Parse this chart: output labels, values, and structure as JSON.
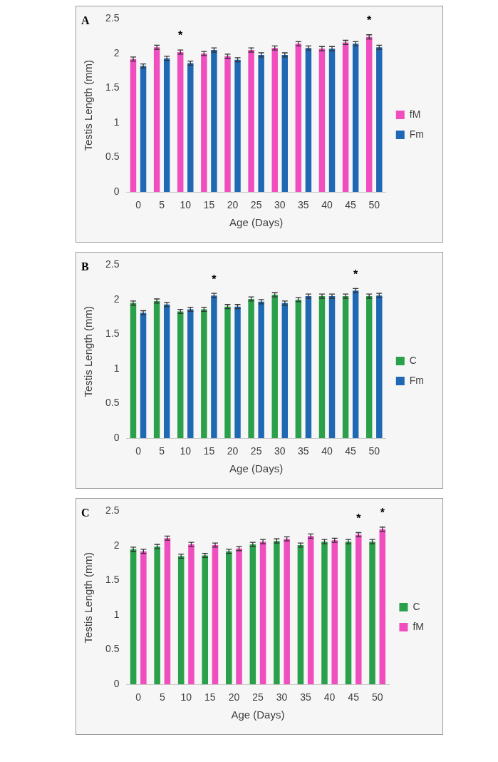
{
  "chart_data": [
    {
      "type": "bar",
      "title": "A",
      "xlabel": "Age (Days)",
      "ylabel": "Testis Length (mm)",
      "categories": [
        "0",
        "5",
        "10",
        "15",
        "20",
        "25",
        "30",
        "35",
        "40",
        "45",
        "50"
      ],
      "series": [
        {
          "name": "fM",
          "color": "#f04dbf",
          "values": [
            1.92,
            2.09,
            2.02,
            2.0,
            1.96,
            2.05,
            2.08,
            2.14,
            2.07,
            2.16,
            2.24
          ],
          "errors": [
            0.03,
            0.03,
            0.03,
            0.03,
            0.03,
            0.03,
            0.03,
            0.03,
            0.03,
            0.03,
            0.03
          ]
        },
        {
          "name": "Fm",
          "color": "#1f68b4",
          "values": [
            1.82,
            1.93,
            1.86,
            2.05,
            1.91,
            1.98,
            1.98,
            2.08,
            2.07,
            2.14,
            2.09
          ],
          "errors": [
            0.03,
            0.03,
            0.03,
            0.03,
            0.03,
            0.03,
            0.03,
            0.03,
            0.03,
            0.03,
            0.03
          ]
        }
      ],
      "ylim": [
        0,
        2.5
      ],
      "yticks": [
        0,
        0.5,
        1,
        1.5,
        2,
        2.5
      ],
      "legend": "right",
      "annotations": [
        {
          "text": "*",
          "x": "10",
          "y": 2.02
        },
        {
          "text": "*",
          "x": "50",
          "y": 2.24
        }
      ]
    },
    {
      "type": "bar",
      "title": "B",
      "xlabel": "Age (Days)",
      "ylabel": "Testis Length (mm)",
      "categories": [
        "0",
        "5",
        "10",
        "15",
        "20",
        "25",
        "30",
        "35",
        "40",
        "45",
        "50"
      ],
      "series": [
        {
          "name": "C",
          "color": "#2aa04a",
          "values": [
            1.95,
            1.98,
            1.83,
            1.86,
            1.9,
            2.01,
            2.07,
            2.0,
            2.05,
            2.05,
            2.05
          ],
          "errors": [
            0.03,
            0.03,
            0.03,
            0.03,
            0.03,
            0.03,
            0.03,
            0.03,
            0.03,
            0.03,
            0.03
          ]
        },
        {
          "name": "Fm",
          "color": "#1f68b4",
          "values": [
            1.81,
            1.93,
            1.86,
            2.06,
            1.9,
            1.97,
            1.95,
            2.05,
            2.05,
            2.13,
            2.06
          ],
          "errors": [
            0.03,
            0.03,
            0.03,
            0.03,
            0.03,
            0.03,
            0.03,
            0.03,
            0.03,
            0.03,
            0.03
          ]
        }
      ],
      "ylim": [
        0,
        2.5
      ],
      "yticks": [
        0,
        0.5,
        1,
        1.5,
        2,
        2.5
      ],
      "legend": "right",
      "annotations": [
        {
          "text": "*",
          "x": "15",
          "y": 2.06
        },
        {
          "text": "*",
          "x": "45",
          "y": 2.13
        }
      ]
    },
    {
      "type": "bar",
      "title": "C",
      "xlabel": "Age (Days)",
      "ylabel": "Testis Length (mm)",
      "categories": [
        "0",
        "5",
        "10",
        "15",
        "20",
        "25",
        "30",
        "35",
        "40",
        "45",
        "50"
      ],
      "series": [
        {
          "name": "C",
          "color": "#2aa04a",
          "values": [
            1.95,
            1.99,
            1.85,
            1.86,
            1.92,
            2.02,
            2.07,
            2.01,
            2.06,
            2.06,
            2.06
          ],
          "errors": [
            0.03,
            0.03,
            0.03,
            0.03,
            0.03,
            0.03,
            0.03,
            0.03,
            0.03,
            0.03,
            0.03
          ]
        },
        {
          "name": "fM",
          "color": "#f04dbf",
          "values": [
            1.92,
            2.11,
            2.02,
            2.01,
            1.96,
            2.06,
            2.1,
            2.14,
            2.08,
            2.16,
            2.24
          ],
          "errors": [
            0.03,
            0.03,
            0.03,
            0.03,
            0.03,
            0.03,
            0.03,
            0.03,
            0.03,
            0.03,
            0.03
          ]
        }
      ],
      "ylim": [
        0,
        2.5
      ],
      "yticks": [
        0,
        0.5,
        1,
        1.5,
        2,
        2.5
      ],
      "legend": "right",
      "annotations": [
        {
          "text": "*",
          "x": "45",
          "y": 2.16
        },
        {
          "text": "*",
          "x": "50",
          "y": 2.24
        }
      ]
    }
  ]
}
